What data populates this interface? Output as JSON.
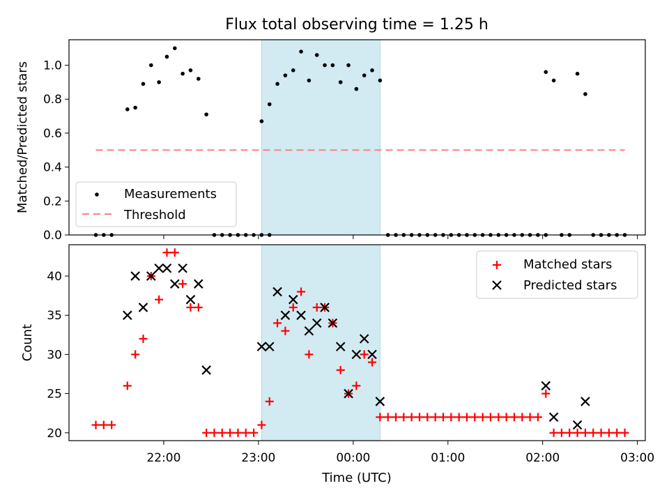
{
  "title": "Flux total observing time = 1.25 h",
  "chart_data": [
    {
      "type": "scatter",
      "title": "Flux total observing time = 1.25 h",
      "ylabel": "Matched/Predicted stars",
      "xlabel": "",
      "xlim": [
        "21:00",
        "03:05"
      ],
      "ylim": [
        0,
        1.15
      ],
      "yticks": [
        "0.0",
        "0.2",
        "0.4",
        "0.6",
        "0.8",
        "1.0"
      ],
      "shaded_span": {
        "start": "23:02",
        "end": "00:17",
        "color": "#add8e6"
      },
      "legend_position": "lower-left",
      "legend": [
        "Measurements",
        "Threshold"
      ],
      "threshold": {
        "name": "Threshold",
        "value": 0.5,
        "x_start": "21:17",
        "x_end": "02:52",
        "color": "#ff7f7f",
        "style": "dashed"
      },
      "series": [
        {
          "name": "Measurements",
          "color": "#000000",
          "marker": "dot",
          "points": [
            [
              "21:17",
              0
            ],
            [
              "21:22",
              0
            ],
            [
              "21:27",
              0
            ],
            [
              "21:37",
              0.74
            ],
            [
              "21:42",
              0.75
            ],
            [
              "21:47",
              0.89
            ],
            [
              "21:52",
              1.0
            ],
            [
              "21:57",
              0.9
            ],
            [
              "22:02",
              1.05
            ],
            [
              "22:07",
              1.1
            ],
            [
              "22:12",
              0.95
            ],
            [
              "22:17",
              0.97
            ],
            [
              "22:22",
              0.92
            ],
            [
              "22:27",
              0.71
            ],
            [
              "22:32",
              0
            ],
            [
              "22:37",
              0
            ],
            [
              "22:42",
              0
            ],
            [
              "22:47",
              0
            ],
            [
              "22:52",
              0
            ],
            [
              "22:57",
              0
            ],
            [
              "23:02",
              0
            ],
            [
              "23:07",
              0
            ],
            [
              "23:02",
              0.67
            ],
            [
              "23:07",
              0.77
            ],
            [
              "23:12",
              0.89
            ],
            [
              "23:17",
              0.94
            ],
            [
              "23:22",
              0.97
            ],
            [
              "23:27",
              1.08
            ],
            [
              "23:32",
              0.91
            ],
            [
              "23:37",
              1.06
            ],
            [
              "23:42",
              1.0
            ],
            [
              "23:47",
              1.0
            ],
            [
              "23:52",
              0.9
            ],
            [
              "23:57",
              1.0
            ],
            [
              "00:02",
              0.86
            ],
            [
              "00:07",
              0.94
            ],
            [
              "00:12",
              0.97
            ],
            [
              "00:17",
              0.91
            ],
            [
              "00:22",
              0
            ],
            [
              "00:27",
              0
            ],
            [
              "00:32",
              0
            ],
            [
              "00:37",
              0
            ],
            [
              "00:42",
              0
            ],
            [
              "00:47",
              0
            ],
            [
              "00:52",
              0
            ],
            [
              "00:57",
              0
            ],
            [
              "01:02",
              0
            ],
            [
              "01:07",
              0
            ],
            [
              "01:12",
              0
            ],
            [
              "01:17",
              0
            ],
            [
              "01:22",
              0
            ],
            [
              "01:27",
              0
            ],
            [
              "01:32",
              0
            ],
            [
              "01:37",
              0
            ],
            [
              "01:42",
              0
            ],
            [
              "01:47",
              0
            ],
            [
              "01:52",
              0
            ],
            [
              "01:57",
              0
            ],
            [
              "02:02",
              0
            ],
            [
              "02:02",
              0.96
            ],
            [
              "02:07",
              0.91
            ],
            [
              "02:12",
              0
            ],
            [
              "02:17",
              0
            ],
            [
              "02:22",
              0.95
            ],
            [
              "02:27",
              0.83
            ],
            [
              "02:32",
              0
            ],
            [
              "02:37",
              0
            ],
            [
              "02:42",
              0
            ],
            [
              "02:47",
              0
            ],
            [
              "02:52",
              0
            ]
          ]
        }
      ]
    },
    {
      "type": "scatter",
      "xlabel": "Time (UTC)",
      "ylabel": "Count",
      "xlim": [
        "21:00",
        "03:05"
      ],
      "ylim": [
        19,
        44
      ],
      "xticks": [
        "22:00",
        "23:00",
        "00:00",
        "01:00",
        "02:00",
        "03:00"
      ],
      "yticks": [
        "20",
        "25",
        "30",
        "35",
        "40"
      ],
      "shaded_span": {
        "start": "23:02",
        "end": "00:17",
        "color": "#add8e6"
      },
      "legend_position": "upper-right",
      "legend": [
        "Matched stars",
        "Predicted stars"
      ],
      "series": [
        {
          "name": "Matched stars",
          "color": "#ff0000",
          "marker": "plus",
          "points": [
            [
              "21:17",
              21
            ],
            [
              "21:22",
              21
            ],
            [
              "21:27",
              21
            ],
            [
              "21:37",
              26
            ],
            [
              "21:42",
              30
            ],
            [
              "21:47",
              32
            ],
            [
              "21:52",
              40
            ],
            [
              "21:57",
              37
            ],
            [
              "22:02",
              43
            ],
            [
              "22:07",
              43
            ],
            [
              "22:12",
              39
            ],
            [
              "22:17",
              36
            ],
            [
              "22:22",
              36
            ],
            [
              "22:27",
              20
            ],
            [
              "22:32",
              20
            ],
            [
              "22:37",
              20
            ],
            [
              "22:42",
              20
            ],
            [
              "22:47",
              20
            ],
            [
              "22:52",
              20
            ],
            [
              "22:57",
              20
            ],
            [
              "23:02",
              21
            ],
            [
              "23:07",
              24
            ],
            [
              "23:12",
              34
            ],
            [
              "23:17",
              33
            ],
            [
              "23:22",
              36
            ],
            [
              "23:27",
              38
            ],
            [
              "23:32",
              30
            ],
            [
              "23:37",
              36
            ],
            [
              "23:42",
              36
            ],
            [
              "23:47",
              34
            ],
            [
              "23:52",
              28
            ],
            [
              "23:57",
              25
            ],
            [
              "00:02",
              26
            ],
            [
              "00:07",
              30
            ],
            [
              "00:12",
              29
            ],
            [
              "00:17",
              22
            ],
            [
              "00:22",
              22
            ],
            [
              "00:27",
              22
            ],
            [
              "00:32",
              22
            ],
            [
              "00:37",
              22
            ],
            [
              "00:42",
              22
            ],
            [
              "00:47",
              22
            ],
            [
              "00:52",
              22
            ],
            [
              "00:57",
              22
            ],
            [
              "01:02",
              22
            ],
            [
              "01:07",
              22
            ],
            [
              "01:12",
              22
            ],
            [
              "01:17",
              22
            ],
            [
              "01:22",
              22
            ],
            [
              "01:27",
              22
            ],
            [
              "01:32",
              22
            ],
            [
              "01:37",
              22
            ],
            [
              "01:42",
              22
            ],
            [
              "01:47",
              22
            ],
            [
              "01:52",
              22
            ],
            [
              "01:57",
              22
            ],
            [
              "02:02",
              25
            ],
            [
              "02:07",
              20
            ],
            [
              "02:12",
              20
            ],
            [
              "02:17",
              20
            ],
            [
              "02:22",
              20
            ],
            [
              "02:27",
              20
            ],
            [
              "02:32",
              20
            ],
            [
              "02:37",
              20
            ],
            [
              "02:42",
              20
            ],
            [
              "02:47",
              20
            ],
            [
              "02:52",
              20
            ]
          ]
        },
        {
          "name": "Predicted stars",
          "color": "#000000",
          "marker": "x",
          "points": [
            [
              "21:37",
              35
            ],
            [
              "21:42",
              40
            ],
            [
              "21:47",
              36
            ],
            [
              "21:52",
              40
            ],
            [
              "21:57",
              41
            ],
            [
              "22:02",
              41
            ],
            [
              "22:07",
              39
            ],
            [
              "22:12",
              41
            ],
            [
              "22:17",
              37
            ],
            [
              "22:22",
              39
            ],
            [
              "22:27",
              28
            ],
            [
              "23:02",
              31
            ],
            [
              "23:07",
              31
            ],
            [
              "23:12",
              38
            ],
            [
              "23:17",
              35
            ],
            [
              "23:22",
              37
            ],
            [
              "23:27",
              35
            ],
            [
              "23:32",
              33
            ],
            [
              "23:37",
              34
            ],
            [
              "23:42",
              36
            ],
            [
              "23:47",
              34
            ],
            [
              "23:52",
              31
            ],
            [
              "23:57",
              25
            ],
            [
              "00:02",
              30
            ],
            [
              "00:07",
              32
            ],
            [
              "00:12",
              30
            ],
            [
              "00:17",
              24
            ],
            [
              "02:02",
              26
            ],
            [
              "02:07",
              22
            ],
            [
              "02:22",
              21
            ],
            [
              "02:27",
              24
            ]
          ]
        }
      ]
    }
  ]
}
